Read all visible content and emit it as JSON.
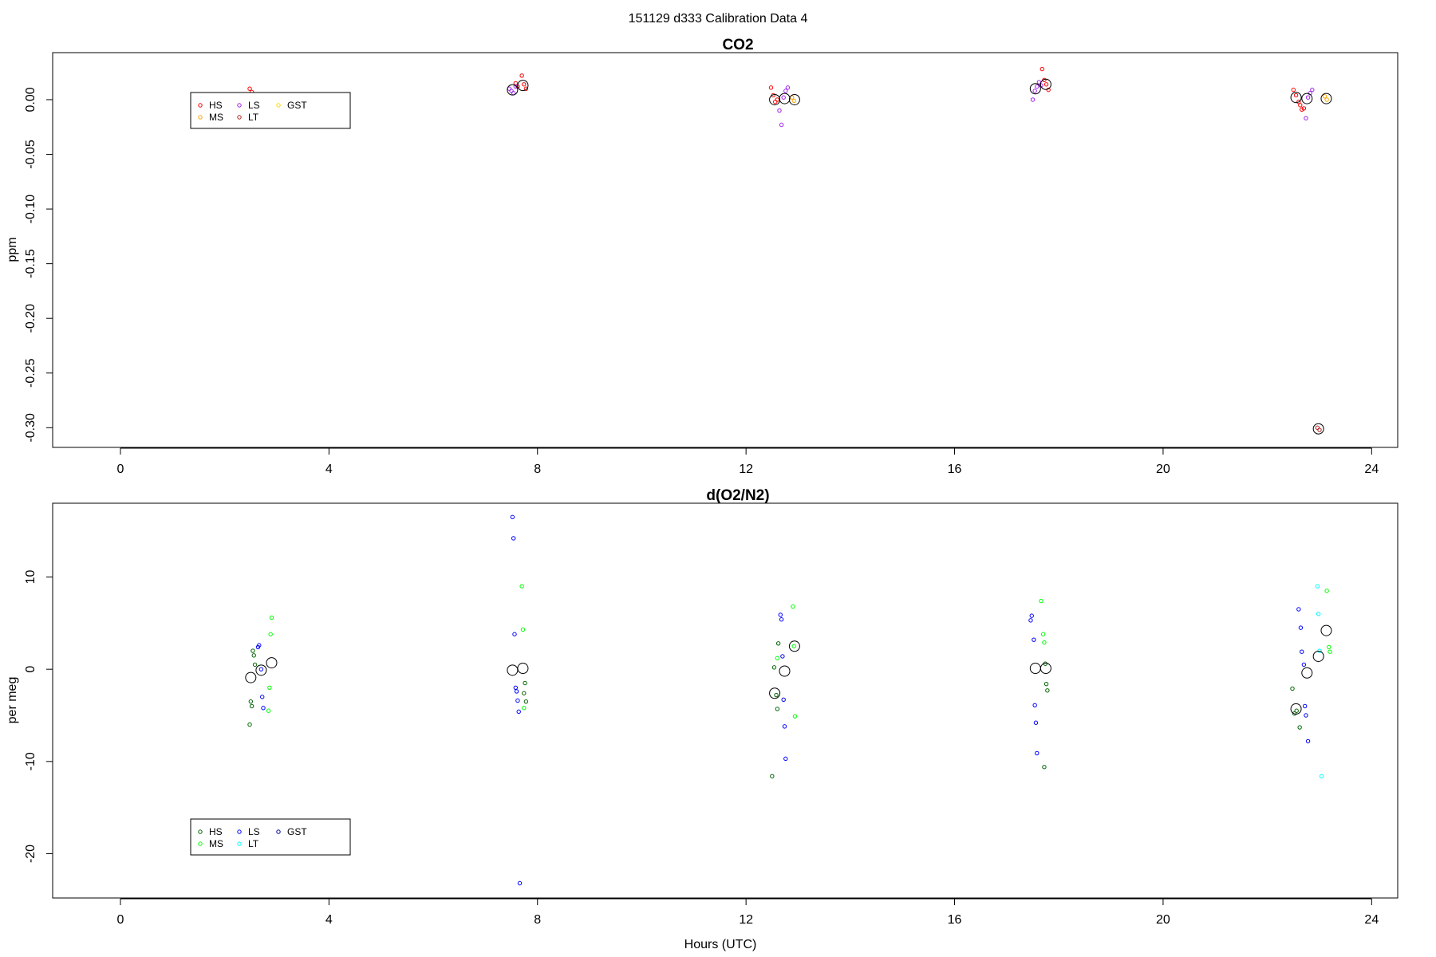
{
  "figure": {
    "title": "151129   d333   Calibration Data 4"
  },
  "chart_data": [
    {
      "type": "scatter",
      "title": "CO2",
      "xlabel": "",
      "ylabel": "ppm",
      "xlim": [
        -1.3,
        24.5
      ],
      "ylim": [
        -0.318,
        0.043
      ],
      "xticks": [
        0,
        4,
        8,
        12,
        16,
        20,
        24
      ],
      "yticks": [
        0.0,
        -0.05,
        -0.1,
        -0.15,
        -0.2,
        -0.25,
        -0.3
      ],
      "ytick_labels": [
        "0.00",
        "-0.05",
        "-0.10",
        "-0.15",
        "-0.20",
        "-0.25",
        "-0.30"
      ],
      "legend": {
        "position": "top-left",
        "columns": 3,
        "entries": [
          {
            "name": "HS",
            "color": "#ff0000"
          },
          {
            "name": "LS",
            "color": "#a020f0"
          },
          {
            "name": "GST",
            "color": "#ffd700"
          },
          {
            "name": "MS",
            "color": "#ffa500"
          },
          {
            "name": "LT",
            "color": "#b22222"
          }
        ]
      },
      "series": [
        {
          "name": "HS",
          "color": "#ff0000",
          "points": [
            [
              2.48,
              0.01
            ],
            [
              2.52,
              0.007
            ],
            [
              7.58,
              0.015
            ],
            [
              7.62,
              0.012
            ],
            [
              7.7,
              0.022
            ],
            [
              7.74,
              0.014
            ],
            [
              7.78,
              0.01
            ],
            [
              12.48,
              0.011
            ],
            [
              12.52,
              0.004
            ],
            [
              12.56,
              -0.002
            ],
            [
              12.6,
              0.0
            ],
            [
              17.68,
              0.028
            ],
            [
              17.72,
              0.018
            ],
            [
              17.76,
              0.014
            ],
            [
              17.8,
              0.009
            ],
            [
              22.5,
              0.009
            ],
            [
              22.55,
              0.004
            ],
            [
              22.6,
              -0.002
            ],
            [
              22.63,
              -0.005
            ],
            [
              22.66,
              -0.009
            ],
            [
              22.7,
              -0.008
            ]
          ]
        },
        {
          "name": "MS",
          "color": "#ffa500",
          "points": [
            [
              12.88,
              0.002
            ],
            [
              12.92,
              -0.001
            ],
            [
              23.1,
              0.003
            ],
            [
              23.14,
              0.0
            ]
          ]
        },
        {
          "name": "LS",
          "color": "#a020f0",
          "points": [
            [
              7.46,
              0.01
            ],
            [
              7.5,
              0.008
            ],
            [
              7.54,
              0.006
            ],
            [
              7.58,
              0.012
            ],
            [
              12.64,
              -0.01
            ],
            [
              12.68,
              -0.023
            ],
            [
              12.72,
              0.002
            ],
            [
              12.76,
              0.008
            ],
            [
              12.8,
              0.011
            ],
            [
              17.5,
              0.0
            ],
            [
              17.54,
              0.008
            ],
            [
              17.58,
              0.012
            ],
            [
              17.62,
              0.016
            ],
            [
              17.66,
              0.013
            ],
            [
              22.74,
              -0.017
            ],
            [
              22.78,
              0.002
            ],
            [
              22.82,
              0.006
            ],
            [
              22.86,
              0.009
            ]
          ]
        },
        {
          "name": "LT",
          "color": "#b22222",
          "points": [
            [
              22.96,
              -0.3
            ],
            [
              23.0,
              -0.302
            ]
          ]
        },
        {
          "name": "GST",
          "color": "#ffd700",
          "points": []
        }
      ],
      "means": [
        [
          7.52,
          0.009
        ],
        [
          7.72,
          0.013
        ],
        [
          12.55,
          0.0
        ],
        [
          12.74,
          0.001
        ],
        [
          12.93,
          0.0
        ],
        [
          17.55,
          0.01
        ],
        [
          17.75,
          0.014
        ],
        [
          22.55,
          0.002
        ],
        [
          22.76,
          0.001
        ],
        [
          22.98,
          -0.301
        ],
        [
          23.13,
          0.001
        ]
      ]
    },
    {
      "type": "scatter",
      "title": "d(O2/N2)",
      "xlabel": "Hours (UTC)",
      "ylabel": "per meg",
      "xlim": [
        -1.3,
        24.5
      ],
      "ylim": [
        -24.8,
        18.0
      ],
      "xticks": [
        0,
        4,
        8,
        12,
        16,
        20,
        24
      ],
      "yticks": [
        10,
        0,
        -10,
        -20
      ],
      "ytick_labels": [
        "10",
        "0",
        "-10",
        "-20"
      ],
      "legend": {
        "position": "bottom-left",
        "columns": 3,
        "entries": [
          {
            "name": "HS",
            "color": "#006400"
          },
          {
            "name": "LS",
            "color": "#0000ff"
          },
          {
            "name": "GST",
            "color": "#00008b"
          },
          {
            "name": "MS",
            "color": "#00ff00"
          },
          {
            "name": "LT",
            "color": "#00ffff"
          }
        ]
      },
      "series": [
        {
          "name": "HS",
          "color": "#006400",
          "points": [
            [
              2.48,
              -6.0
            ],
            [
              2.5,
              -3.5
            ],
            [
              2.52,
              -4.0
            ],
            [
              2.54,
              2.0
            ],
            [
              2.56,
              1.5
            ],
            [
              2.58,
              0.5
            ],
            [
              7.74,
              -2.6
            ],
            [
              7.76,
              -1.5
            ],
            [
              7.78,
              -3.5
            ],
            [
              12.5,
              -11.6
            ],
            [
              12.54,
              0.2
            ],
            [
              12.58,
              -2.8
            ],
            [
              12.6,
              -4.3
            ],
            [
              12.62,
              2.8
            ],
            [
              17.72,
              -10.6
            ],
            [
              17.74,
              0.6
            ],
            [
              17.76,
              -1.6
            ],
            [
              17.78,
              -2.3
            ],
            [
              22.48,
              -2.1
            ],
            [
              22.52,
              -4.8
            ],
            [
              22.56,
              -4.5
            ],
            [
              22.62,
              -6.3
            ]
          ]
        },
        {
          "name": "MS",
          "color": "#00ff00",
          "points": [
            [
              2.9,
              5.6
            ],
            [
              2.88,
              3.8
            ],
            [
              2.86,
              -2.0
            ],
            [
              2.84,
              -4.5
            ],
            [
              7.7,
              9.0
            ],
            [
              7.72,
              4.3
            ],
            [
              7.74,
              -4.2
            ],
            [
              12.6,
              1.2
            ],
            [
              12.9,
              6.8
            ],
            [
              12.92,
              2.5
            ],
            [
              12.94,
              -5.1
            ],
            [
              17.66,
              7.4
            ],
            [
              17.7,
              3.8
            ],
            [
              17.72,
              2.9
            ],
            [
              23.14,
              8.5
            ],
            [
              23.18,
              2.4
            ],
            [
              23.2,
              1.9
            ]
          ]
        },
        {
          "name": "LS",
          "color": "#0000ff",
          "points": [
            [
              2.64,
              2.4
            ],
            [
              2.66,
              2.6
            ],
            [
              2.7,
              0.0
            ],
            [
              2.72,
              -3.0
            ],
            [
              2.74,
              -4.2
            ],
            [
              7.52,
              16.5
            ],
            [
              7.54,
              14.2
            ],
            [
              7.56,
              3.8
            ],
            [
              7.58,
              -2.0
            ],
            [
              7.6,
              -2.4
            ],
            [
              7.62,
              -3.4
            ],
            [
              7.64,
              -4.6
            ],
            [
              7.66,
              -23.2
            ],
            [
              12.66,
              5.9
            ],
            [
              12.68,
              5.4
            ],
            [
              12.7,
              1.4
            ],
            [
              12.72,
              -3.3
            ],
            [
              12.74,
              -6.2
            ],
            [
              12.76,
              -9.7
            ],
            [
              17.46,
              5.3
            ],
            [
              17.48,
              5.8
            ],
            [
              17.52,
              3.2
            ],
            [
              17.54,
              -3.9
            ],
            [
              17.56,
              -5.8
            ],
            [
              17.58,
              -9.1
            ],
            [
              22.6,
              6.5
            ],
            [
              22.64,
              4.5
            ],
            [
              22.66,
              1.9
            ],
            [
              22.7,
              0.5
            ],
            [
              22.72,
              -4.0
            ],
            [
              22.74,
              -5.0
            ],
            [
              22.78,
              -7.8
            ]
          ]
        },
        {
          "name": "LT",
          "color": "#00ffff",
          "points": [
            [
              22.96,
              9.0
            ],
            [
              22.98,
              6.0
            ],
            [
              23.0,
              2.0
            ],
            [
              23.04,
              -11.6
            ]
          ]
        },
        {
          "name": "GST",
          "color": "#00008b",
          "points": []
        }
      ],
      "means": [
        [
          2.5,
          -0.9
        ],
        [
          2.7,
          -0.1
        ],
        [
          2.9,
          0.7
        ],
        [
          7.52,
          -0.1
        ],
        [
          7.72,
          0.1
        ],
        [
          12.55,
          -2.6
        ],
        [
          12.74,
          -0.2
        ],
        [
          12.93,
          2.5
        ],
        [
          17.55,
          0.1
        ],
        [
          17.75,
          0.1
        ],
        [
          22.55,
          -4.3
        ],
        [
          22.76,
          -0.4
        ],
        [
          22.98,
          1.4
        ],
        [
          23.13,
          4.2
        ]
      ]
    }
  ]
}
